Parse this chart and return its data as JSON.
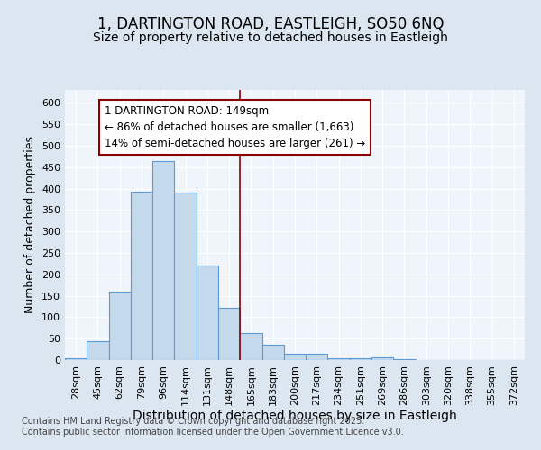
{
  "title1": "1, DARTINGTON ROAD, EASTLEIGH, SO50 6NQ",
  "title2": "Size of property relative to detached houses in Eastleigh",
  "xlabel": "Distribution of detached houses by size in Eastleigh",
  "ylabel": "Number of detached properties",
  "categories": [
    "28sqm",
    "45sqm",
    "62sqm",
    "79sqm",
    "96sqm",
    "114sqm",
    "131sqm",
    "148sqm",
    "165sqm",
    "183sqm",
    "200sqm",
    "217sqm",
    "234sqm",
    "251sqm",
    "269sqm",
    "286sqm",
    "303sqm",
    "320sqm",
    "338sqm",
    "355sqm",
    "372sqm"
  ],
  "values": [
    5,
    45,
    160,
    393,
    465,
    390,
    220,
    122,
    62,
    35,
    14,
    15,
    4,
    4,
    7,
    2,
    1,
    1,
    1,
    1,
    1
  ],
  "bar_color": "#c5d9ed",
  "bar_edge_color": "#5b9bd5",
  "vline_x_index": 7,
  "vline_color": "#8b0000",
  "annotation_text": "1 DARTINGTON ROAD: 149sqm\n← 86% of detached houses are smaller (1,663)\n14% of semi-detached houses are larger (261) →",
  "annotation_box_color": "#ffffff",
  "annotation_box_edge_color": "#8b0000",
  "ylim": [
    0,
    630
  ],
  "yticks": [
    0,
    50,
    100,
    150,
    200,
    250,
    300,
    350,
    400,
    450,
    500,
    550,
    600
  ],
  "fig_background_color": "#dce6f1",
  "plot_background": "#f0f4fb",
  "footer_text": "Contains HM Land Registry data © Crown copyright and database right 2025.\nContains public sector information licensed under the Open Government Licence v3.0.",
  "grid_color": "#ffffff",
  "title_fontsize": 12,
  "subtitle_fontsize": 10,
  "tick_fontsize": 8,
  "ylabel_fontsize": 9,
  "xlabel_fontsize": 10,
  "footer_fontsize": 7
}
